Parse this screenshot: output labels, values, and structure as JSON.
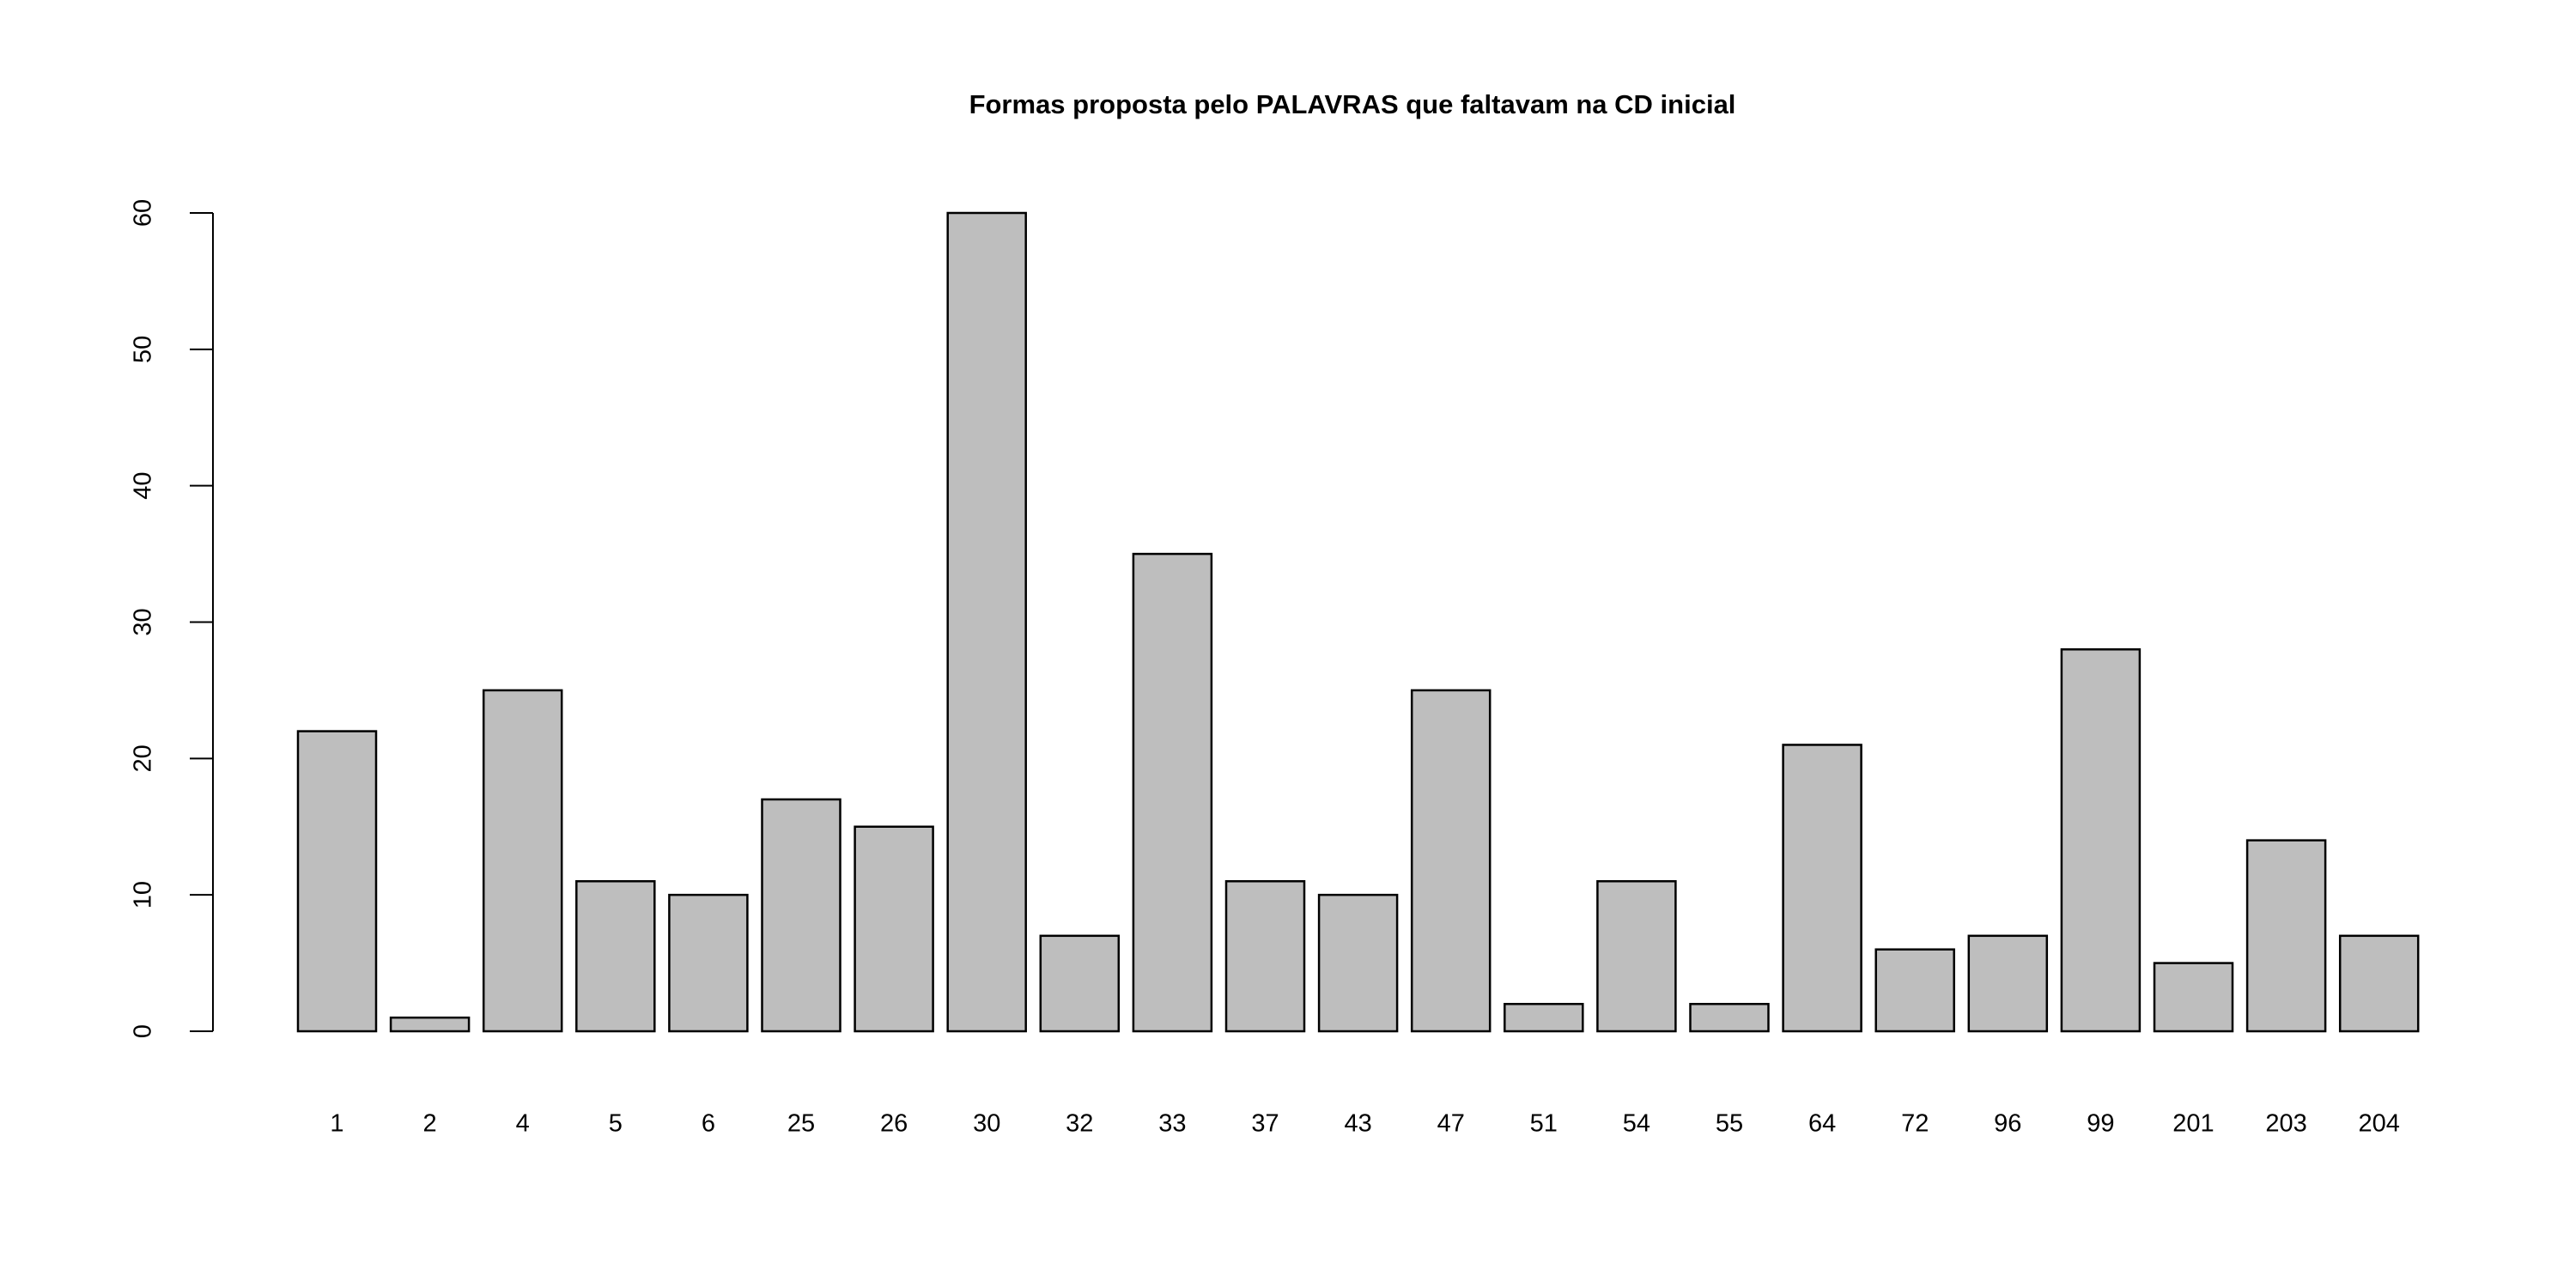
{
  "chart_data": {
    "type": "bar",
    "title": "Formas proposta pelo PALAVRAS que faltavam na CD inicial",
    "categories": [
      "1",
      "2",
      "4",
      "5",
      "6",
      "25",
      "26",
      "30",
      "32",
      "33",
      "37",
      "43",
      "47",
      "51",
      "54",
      "55",
      "64",
      "72",
      "96",
      "99",
      "201",
      "203",
      "204"
    ],
    "values": [
      22,
      1,
      25,
      11,
      10,
      17,
      15,
      60,
      7,
      35,
      11,
      10,
      25,
      2,
      11,
      2,
      21,
      6,
      7,
      28,
      5,
      14,
      7
    ],
    "color": "#bebebe",
    "ylim": [
      0,
      60
    ],
    "yticks": [
      0,
      10,
      20,
      30,
      40,
      50,
      60
    ]
  }
}
